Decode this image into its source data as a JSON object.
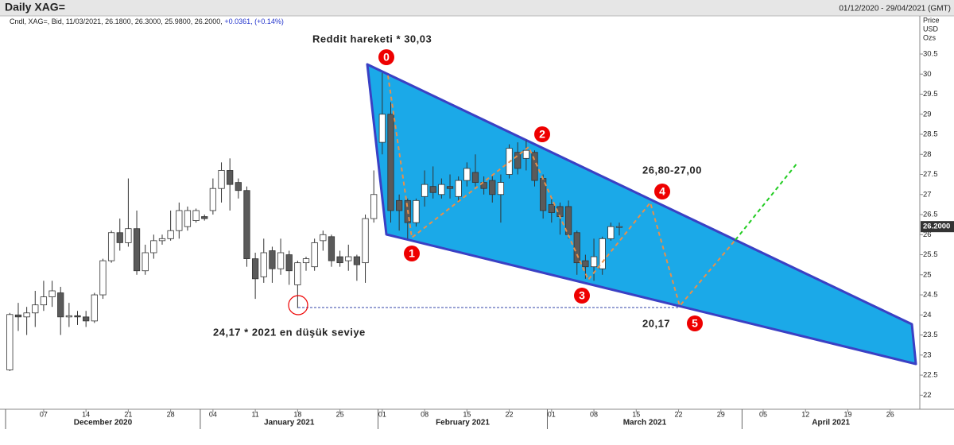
{
  "chart_data": {
    "type": "candlestick",
    "title": "Daily XAG=",
    "date_range": "01/12/2020 - 29/04/2021 (GMT)",
    "info": "Cndl, XAG=, Bid, 11/03/2021, 26.1800, 26.3000, 25.9800, 26.2000,",
    "change": "+0.0361, (+0.14%)",
    "y_axis_title": [
      "Price",
      "USD",
      "Ozs"
    ],
    "last_price_label": "26.2000",
    "up_color": "#ffffff",
    "down_color": "#5a5a5a",
    "x": [
      "2020-12-01",
      "2020-12-02",
      "2020-12-03",
      "2020-12-04",
      "2020-12-07",
      "2020-12-08",
      "2020-12-09",
      "2020-12-10",
      "2020-12-11",
      "2020-12-14",
      "2020-12-15",
      "2020-12-16",
      "2020-12-17",
      "2020-12-18",
      "2020-12-21",
      "2020-12-22",
      "2020-12-23",
      "2020-12-24",
      "2020-12-25",
      "2020-12-28",
      "2020-12-29",
      "2020-12-30",
      "2020-12-31",
      "2021-01-01",
      "2021-01-04",
      "2021-01-05",
      "2021-01-06",
      "2021-01-07",
      "2021-01-08",
      "2021-01-11",
      "2021-01-12",
      "2021-01-13",
      "2021-01-14",
      "2021-01-15",
      "2021-01-18",
      "2021-01-19",
      "2021-01-20",
      "2021-01-21",
      "2021-01-22",
      "2021-01-25",
      "2021-01-26",
      "2021-01-27",
      "2021-01-28",
      "2021-01-29",
      "2021-02-01",
      "2021-02-02",
      "2021-02-03",
      "2021-02-04",
      "2021-02-05",
      "2021-02-08",
      "2021-02-09",
      "2021-02-10",
      "2021-02-11",
      "2021-02-12",
      "2021-02-15",
      "2021-02-16",
      "2021-02-17",
      "2021-02-18",
      "2021-02-19",
      "2021-02-22",
      "2021-02-23",
      "2021-02-24",
      "2021-02-25",
      "2021-02-26",
      "2021-03-01",
      "2021-03-02",
      "2021-03-03",
      "2021-03-04",
      "2021-03-05",
      "2021-03-08",
      "2021-03-09",
      "2021-03-10",
      "2021-03-11"
    ],
    "open": [
      22.63,
      24.0,
      23.95,
      24.05,
      24.25,
      24.45,
      24.55,
      23.95,
      23.98,
      23.95,
      23.85,
      24.5,
      25.35,
      26.05,
      25.8,
      26.15,
      25.1,
      25.55,
      25.85,
      25.9,
      26.1,
      26.2,
      26.35,
      26.45,
      26.6,
      27.15,
      27.6,
      27.3,
      27.1,
      25.4,
      24.95,
      25.6,
      25.15,
      25.5,
      24.75,
      25.3,
      25.2,
      25.85,
      25.95,
      25.45,
      25.35,
      25.45,
      25.3,
      26.4,
      28.3,
      29.0,
      26.85,
      26.85,
      26.3,
      26.95,
      27.2,
      27.0,
      27.2,
      26.95,
      27.35,
      27.55,
      27.3,
      27.35,
      27.0,
      27.5,
      28.05,
      27.9,
      28.05,
      27.4,
      26.75,
      26.7,
      26.7,
      26.05,
      25.35,
      25.2,
      25.15,
      25.9,
      26.18
    ],
    "high": [
      24.05,
      24.3,
      24.2,
      24.6,
      24.85,
      24.85,
      24.7,
      24.3,
      24.1,
      24.1,
      24.55,
      25.4,
      26.1,
      26.4,
      27.4,
      26.6,
      25.75,
      26.0,
      26.0,
      26.6,
      26.8,
      26.7,
      26.65,
      26.5,
      27.4,
      27.8,
      27.9,
      27.4,
      27.2,
      25.55,
      25.9,
      25.7,
      25.9,
      25.6,
      25.35,
      25.45,
      25.9,
      26.1,
      26.0,
      25.6,
      25.75,
      25.5,
      26.5,
      27.6,
      30.03,
      29.3,
      27.0,
      26.9,
      26.9,
      27.6,
      27.7,
      27.4,
      27.5,
      27.45,
      27.8,
      28.0,
      27.45,
      27.5,
      27.5,
      28.25,
      28.3,
      28.35,
      28.1,
      27.5,
      26.95,
      26.8,
      26.85,
      26.1,
      25.5,
      25.9,
      25.95,
      26.3,
      26.3
    ],
    "low": [
      22.6,
      23.6,
      23.5,
      23.7,
      24.1,
      24.2,
      23.5,
      23.7,
      23.75,
      23.7,
      23.8,
      24.4,
      25.3,
      25.6,
      25.7,
      25.0,
      25.0,
      25.4,
      25.75,
      25.85,
      25.9,
      26.1,
      26.3,
      26.35,
      26.5,
      26.8,
      26.6,
      26.9,
      25.2,
      24.4,
      24.8,
      24.8,
      25.0,
      24.75,
      24.17,
      25.1,
      25.1,
      25.6,
      25.2,
      25.2,
      25.1,
      24.85,
      24.8,
      26.3,
      28.0,
      26.3,
      26.1,
      25.9,
      26.2,
      26.7,
      26.9,
      26.9,
      26.9,
      26.8,
      27.2,
      27.2,
      27.0,
      26.8,
      26.3,
      27.4,
      27.5,
      27.6,
      27.2,
      26.4,
      26.3,
      26.0,
      25.9,
      25.0,
      24.9,
      24.85,
      25.0,
      25.85,
      25.98
    ],
    "close": [
      24.01,
      23.95,
      24.05,
      24.25,
      24.45,
      24.6,
      23.95,
      23.98,
      23.95,
      23.85,
      24.5,
      25.35,
      26.05,
      25.8,
      26.15,
      25.1,
      25.55,
      25.85,
      25.9,
      26.1,
      26.6,
      26.6,
      26.6,
      26.4,
      27.15,
      27.6,
      27.25,
      27.1,
      25.4,
      24.9,
      25.55,
      25.15,
      25.55,
      25.1,
      25.3,
      25.4,
      25.8,
      26.0,
      25.35,
      25.3,
      25.45,
      25.25,
      26.4,
      27.0,
      29.0,
      26.6,
      26.6,
      26.3,
      26.85,
      27.25,
      27.05,
      27.25,
      27.15,
      27.35,
      27.65,
      27.3,
      27.15,
      27.0,
      27.3,
      28.15,
      27.65,
      28.1,
      27.35,
      26.6,
      26.55,
      26.45,
      26.0,
      25.3,
      25.2,
      25.45,
      25.9,
      26.2,
      26.2
    ],
    "xlim": [
      "2020-12-01",
      "2021-04-29"
    ],
    "xticks": [
      {
        "value": "2020-12-07",
        "label": "07"
      },
      {
        "value": "2020-12-14",
        "label": "14"
      },
      {
        "value": "2020-12-21",
        "label": "21"
      },
      {
        "value": "2020-12-28",
        "label": "28"
      },
      {
        "value": "2021-01-04",
        "label": "04"
      },
      {
        "value": "2021-01-11",
        "label": "11"
      },
      {
        "value": "2021-01-18",
        "label": "18"
      },
      {
        "value": "2021-01-25",
        "label": "25"
      },
      {
        "value": "2021-02-01",
        "label": "01"
      },
      {
        "value": "2021-02-08",
        "label": "08"
      },
      {
        "value": "2021-02-15",
        "label": "15"
      },
      {
        "value": "2021-02-22",
        "label": "22"
      },
      {
        "value": "2021-03-01",
        "label": "01"
      },
      {
        "value": "2021-03-08",
        "label": "08"
      },
      {
        "value": "2021-03-15",
        "label": "15"
      },
      {
        "value": "2021-03-22",
        "label": "22"
      },
      {
        "value": "2021-03-29",
        "label": "29"
      },
      {
        "value": "2021-04-05",
        "label": "05"
      },
      {
        "value": "2021-04-12",
        "label": "12"
      },
      {
        "value": "2021-04-19",
        "label": "19"
      },
      {
        "value": "2021-04-26",
        "label": "26"
      }
    ],
    "months": [
      {
        "value": "2020-12-01",
        "label": "December 2020"
      },
      {
        "value": "2021-01-01",
        "label": "January 2021"
      },
      {
        "value": "2021-02-01",
        "label": "February 2021"
      },
      {
        "value": "2021-03-01",
        "label": "March 2021"
      },
      {
        "value": "2021-04-01",
        "label": "April 2021"
      }
    ],
    "ylim": [
      21.65,
      31.45
    ],
    "yticks": [
      22,
      22.5,
      23,
      23.5,
      24,
      24.5,
      25,
      25.5,
      26,
      26.5,
      27,
      27.5,
      28,
      28.5,
      29,
      29.5,
      30,
      30.5
    ],
    "annotations": [
      "Reddit hareketi  * 30,03",
      "24,17 *  2021 en düşük seviye",
      "26,80-27,00",
      "20,17"
    ],
    "wave_labels": [
      "0",
      "1",
      "2",
      "3",
      "4",
      "5"
    ]
  }
}
